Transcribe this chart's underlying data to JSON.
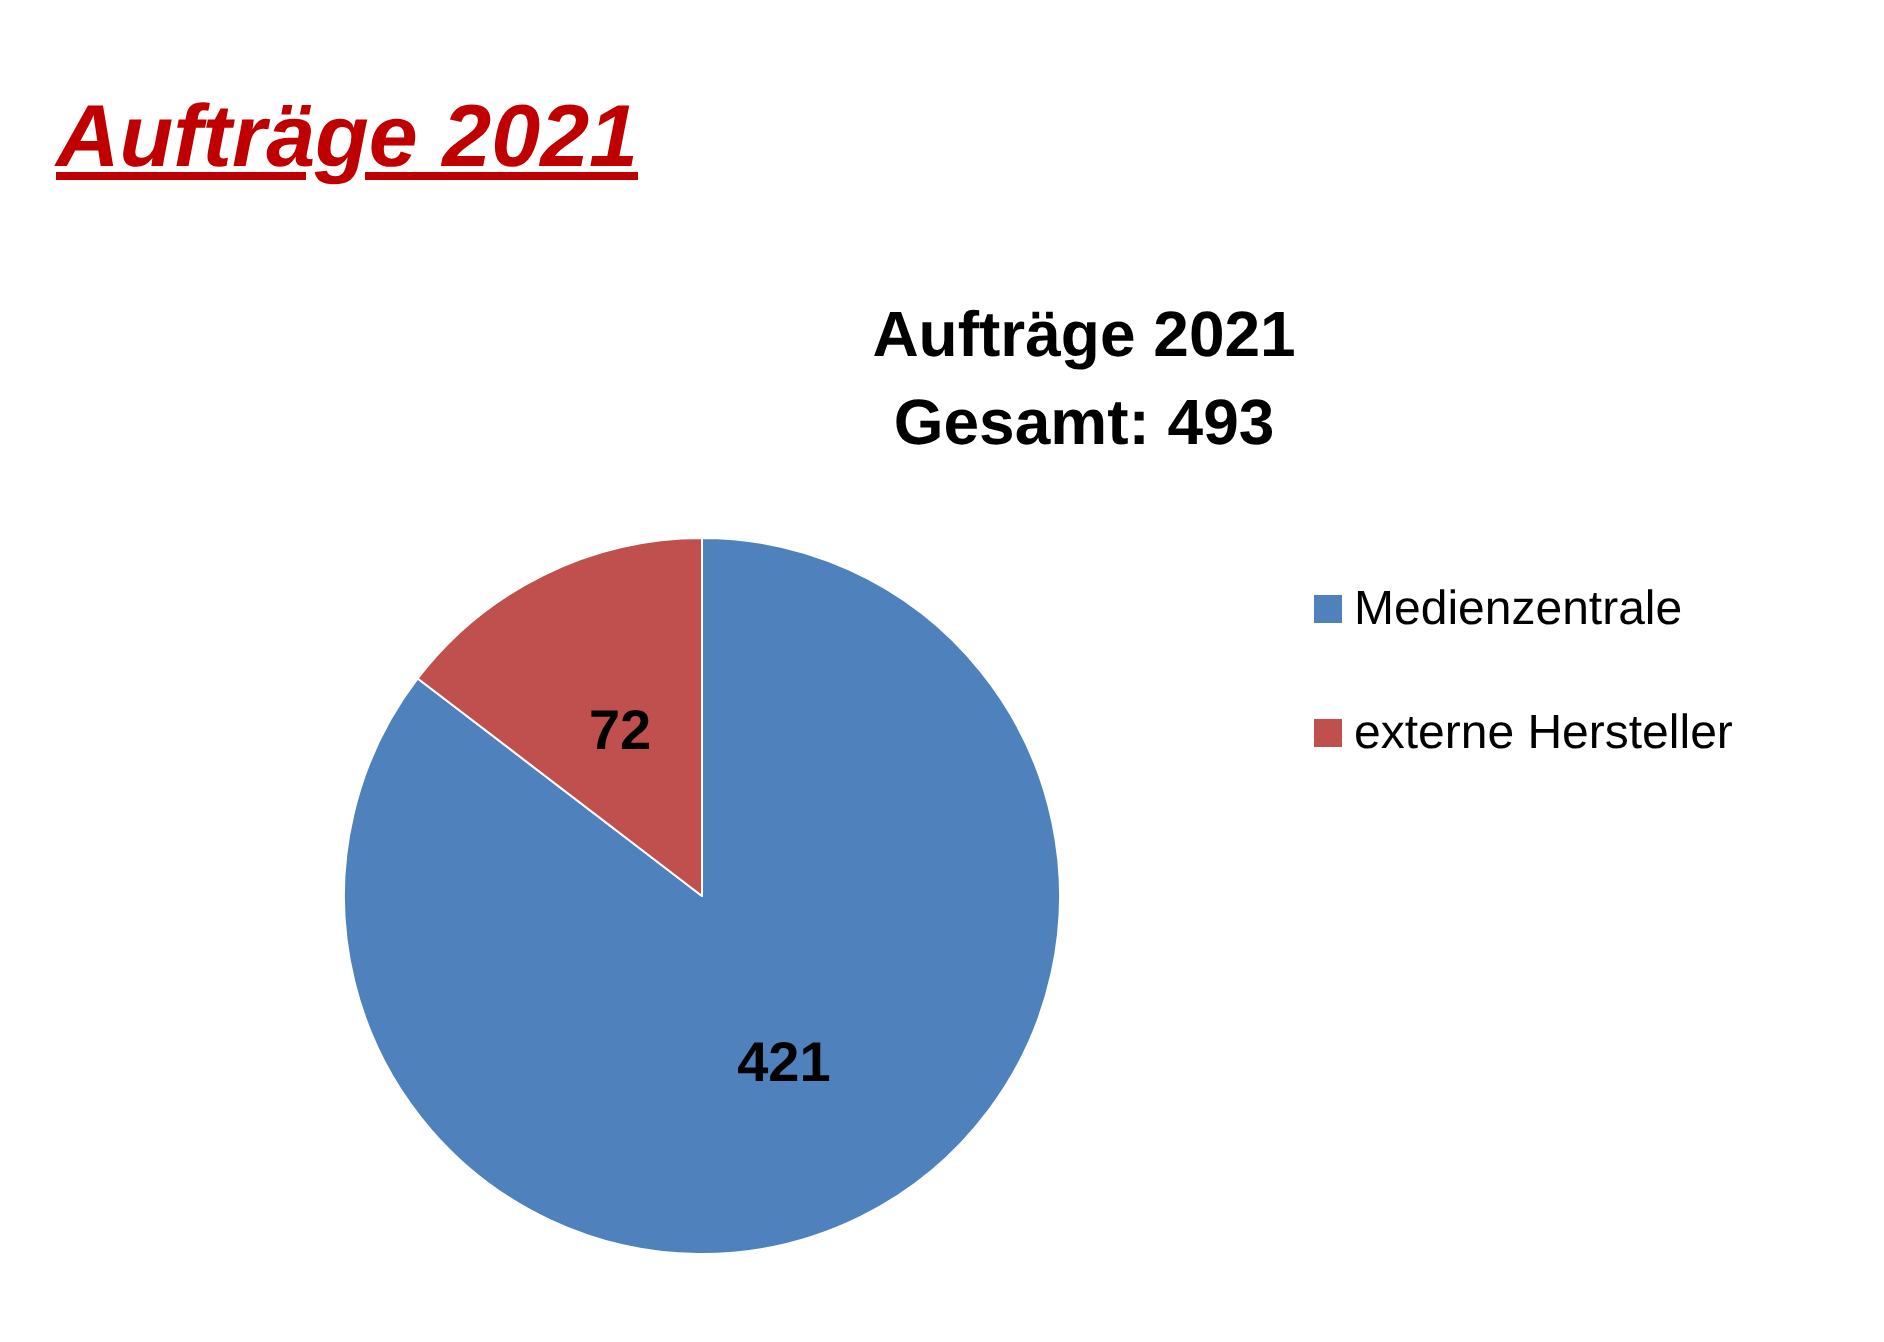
{
  "chart_data": {
    "type": "pie",
    "title": "Aufträge 2021",
    "subtitle": "Aufträge 2021\nGesamt: 493",
    "categories": [
      "Medienzentrale",
      "externe Hersteller"
    ],
    "values": [
      421,
      72
    ],
    "colors": [
      "#4f81bd",
      "#c0504d"
    ],
    "data_labels": true,
    "legend": "right"
  }
}
